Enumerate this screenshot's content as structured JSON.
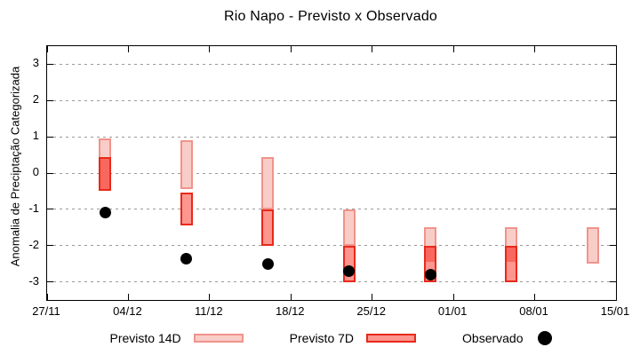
{
  "chart_data": {
    "type": "bar",
    "title": "Rio Napo - Previsto x Observado",
    "ylabel": "Anomalia de Preciptação Categorizada",
    "xlabel": "",
    "ylim": [
      -3.5,
      3.5
    ],
    "y_axis_ticks": [
      3,
      2,
      1,
      0,
      -1,
      -2,
      -3
    ],
    "x_axis_tick_labels": [
      "27/11",
      "04/12",
      "11/12",
      "18/12",
      "25/12",
      "01/01",
      "08/01",
      "15/01"
    ],
    "x_axis_span_days": 49,
    "grid": "dashed-horizontal",
    "legend_position": "bottom",
    "clusters_days_after_start": [
      5,
      12,
      19,
      26,
      33,
      40,
      47
    ],
    "series": [
      {
        "name": "Previsto 14D",
        "type": "range-bar",
        "ranges": [
          [
            -0.5,
            0.95
          ],
          [
            -0.45,
            0.9
          ],
          [
            -1.0,
            0.45
          ],
          [
            -2.0,
            -1.0
          ],
          [
            -2.5,
            -1.5
          ],
          [
            -2.5,
            -1.5
          ],
          [
            -2.5,
            -1.5
          ]
        ]
      },
      {
        "name": "Previsto 7D",
        "type": "range-bar",
        "ranges": [
          [
            -0.5,
            0.45
          ],
          [
            -1.45,
            -0.55
          ],
          [
            -2.0,
            -1.0
          ],
          [
            -3.0,
            -2.0
          ],
          [
            -3.0,
            -2.0
          ],
          [
            -3.0,
            -2.0
          ],
          null
        ]
      },
      {
        "name": "Observado",
        "type": "scatter",
        "values": [
          -1.1,
          -2.35,
          -2.5,
          -2.7,
          -2.8,
          null,
          null
        ]
      }
    ]
  },
  "colors": {
    "previsto_14d_fill": "#f9cdc7",
    "previsto_14d_border": "#f0938b",
    "previsto_7d_fill": "#fc968e",
    "previsto_7d_border": "#e8291b",
    "overlap_fill": "#f9685e",
    "observado": "#000000",
    "grid": "#9a9a9a",
    "axis": "#000000"
  }
}
